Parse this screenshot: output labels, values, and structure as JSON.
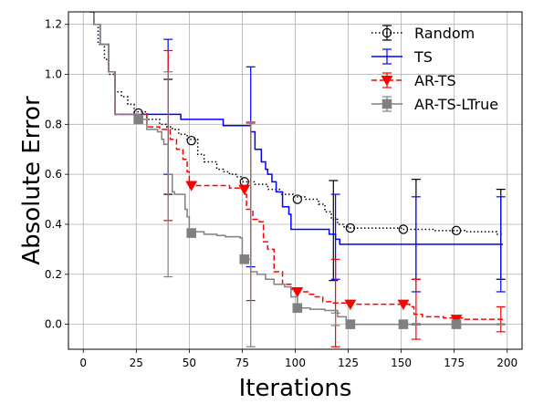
{
  "chart_data": {
    "type": "line",
    "title": "",
    "xlabel": "Iterations",
    "ylabel": "Absolute Error",
    "xlim": [
      -7,
      207
    ],
    "ylim": [
      -0.1,
      1.25
    ],
    "xticks": [
      0,
      25,
      50,
      75,
      100,
      125,
      150,
      175,
      200
    ],
    "yticks": [
      0.0,
      0.2,
      0.4,
      0.6,
      0.8,
      1.0,
      1.2
    ],
    "grid": true,
    "legend_position": "top-right",
    "series": [
      {
        "name": "Random",
        "color": "#000000",
        "dash": "dotted",
        "marker": "circle-open",
        "steps": [
          [
            0,
            1.32
          ],
          [
            3,
            1.25
          ],
          [
            5,
            1.2
          ],
          [
            7,
            1.12
          ],
          [
            10,
            1.06
          ],
          [
            12,
            1.0
          ],
          [
            15,
            0.93
          ],
          [
            18,
            0.91
          ],
          [
            21,
            0.88
          ],
          [
            24,
            0.85
          ],
          [
            30,
            0.82
          ],
          [
            36,
            0.8
          ],
          [
            39,
            0.79
          ],
          [
            42,
            0.78
          ],
          [
            45,
            0.76
          ],
          [
            49,
            0.74
          ],
          [
            54,
            0.68
          ],
          [
            57,
            0.65
          ],
          [
            63,
            0.62
          ],
          [
            66,
            0.61
          ],
          [
            69,
            0.6
          ],
          [
            72,
            0.59
          ],
          [
            75,
            0.57
          ],
          [
            81,
            0.56
          ],
          [
            87,
            0.54
          ],
          [
            93,
            0.52
          ],
          [
            99,
            0.51
          ],
          [
            105,
            0.5
          ],
          [
            111,
            0.48
          ],
          [
            114,
            0.45
          ],
          [
            117,
            0.42
          ],
          [
            120,
            0.4
          ],
          [
            123,
            0.39
          ],
          [
            126,
            0.385
          ],
          [
            150,
            0.38
          ],
          [
            165,
            0.375
          ],
          [
            180,
            0.37
          ],
          [
            195,
            0.36
          ],
          [
            198,
            0.36
          ]
        ],
        "markers": [
          [
            26,
            0.845
          ],
          [
            51,
            0.735
          ],
          [
            76,
            0.57
          ],
          [
            101,
            0.5
          ],
          [
            126,
            0.385
          ],
          [
            151,
            0.38
          ],
          [
            176,
            0.375
          ]
        ],
        "errorbars": [
          [
            40,
            0.75,
            0.23
          ],
          [
            118,
            0.375,
            0.2
          ],
          [
            157,
            0.38,
            0.2
          ],
          [
            197,
            0.36,
            0.18
          ]
        ]
      },
      {
        "name": "TS",
        "color": "#0000ff",
        "dash": "solid",
        "marker": "none",
        "steps": [
          [
            0,
            1.32
          ],
          [
            2,
            1.28
          ],
          [
            5,
            1.2
          ],
          [
            8,
            1.12
          ],
          [
            12,
            1.01
          ],
          [
            15,
            0.84
          ],
          [
            45,
            0.84
          ],
          [
            46,
            0.82
          ],
          [
            65,
            0.82
          ],
          [
            66,
            0.795
          ],
          [
            78,
            0.795
          ],
          [
            79,
            0.77
          ],
          [
            81,
            0.7
          ],
          [
            84,
            0.65
          ],
          [
            86,
            0.62
          ],
          [
            87,
            0.6
          ],
          [
            89,
            0.57
          ],
          [
            91,
            0.53
          ],
          [
            94,
            0.47
          ],
          [
            97,
            0.44
          ],
          [
            98,
            0.38
          ],
          [
            115,
            0.38
          ],
          [
            116,
            0.36
          ],
          [
            119,
            0.34
          ],
          [
            121,
            0.32
          ],
          [
            198,
            0.32
          ]
        ],
        "markers": [],
        "errorbars": [
          [
            40,
            0.87,
            0.27
          ],
          [
            79,
            0.63,
            0.4
          ],
          [
            119,
            0.35,
            0.17
          ],
          [
            157,
            0.32,
            0.19
          ],
          [
            197,
            0.32,
            0.19
          ]
        ]
      },
      {
        "name": "AR-TS",
        "color": "#ff0000",
        "dash": "dashed",
        "marker": "triangle-down",
        "steps": [
          [
            0,
            1.32
          ],
          [
            3,
            1.25
          ],
          [
            5,
            1.2
          ],
          [
            8,
            1.12
          ],
          [
            12,
            1.01
          ],
          [
            15,
            0.84
          ],
          [
            28,
            0.84
          ],
          [
            30,
            0.79
          ],
          [
            36,
            0.78
          ],
          [
            41,
            0.74
          ],
          [
            44,
            0.7
          ],
          [
            47,
            0.66
          ],
          [
            49,
            0.61
          ],
          [
            50,
            0.555
          ],
          [
            66,
            0.555
          ],
          [
            69,
            0.545
          ],
          [
            74,
            0.54
          ],
          [
            76,
            0.52
          ],
          [
            77,
            0.46
          ],
          [
            80,
            0.42
          ],
          [
            83,
            0.41
          ],
          [
            85,
            0.33
          ],
          [
            87,
            0.3
          ],
          [
            90,
            0.21
          ],
          [
            94,
            0.16
          ],
          [
            98,
            0.14
          ],
          [
            101,
            0.13
          ],
          [
            106,
            0.12
          ],
          [
            109,
            0.11
          ],
          [
            113,
            0.09
          ],
          [
            118,
            0.085
          ],
          [
            124,
            0.08
          ],
          [
            130,
            0.08
          ],
          [
            150,
            0.08
          ],
          [
            154,
            0.07
          ],
          [
            156,
            0.04
          ],
          [
            160,
            0.03
          ],
          [
            170,
            0.025
          ],
          [
            180,
            0.02
          ],
          [
            198,
            0.02
          ]
        ],
        "markers": [
          [
            51,
            0.555
          ],
          [
            76,
            0.54
          ],
          [
            101,
            0.13
          ],
          [
            126,
            0.08
          ],
          [
            151,
            0.08
          ],
          [
            176,
            0.02
          ]
        ],
        "errorbars": [
          [
            40,
            0.755,
            0.34
          ],
          [
            79,
            0.45,
            0.355
          ],
          [
            119,
            0.085,
            0.175
          ],
          [
            157,
            0.06,
            0.12
          ],
          [
            197,
            0.02,
            0.05
          ]
        ]
      },
      {
        "name": "AR-TS-LTrue",
        "color": "#808080",
        "dash": "solid",
        "marker": "square",
        "steps": [
          [
            0,
            1.32
          ],
          [
            3,
            1.25
          ],
          [
            5,
            1.2
          ],
          [
            8,
            1.12
          ],
          [
            12,
            1.01
          ],
          [
            15,
            0.84
          ],
          [
            24,
            0.84
          ],
          [
            27,
            0.82
          ],
          [
            30,
            0.78
          ],
          [
            35,
            0.77
          ],
          [
            37,
            0.74
          ],
          [
            38,
            0.72
          ],
          [
            40,
            0.6
          ],
          [
            42,
            0.53
          ],
          [
            43,
            0.52
          ],
          [
            47,
            0.52
          ],
          [
            48,
            0.46
          ],
          [
            49,
            0.43
          ],
          [
            50,
            0.38
          ],
          [
            51,
            0.37
          ],
          [
            57,
            0.36
          ],
          [
            63,
            0.355
          ],
          [
            67,
            0.35
          ],
          [
            74,
            0.345
          ],
          [
            75,
            0.26
          ],
          [
            78,
            0.26
          ],
          [
            79,
            0.21
          ],
          [
            82,
            0.2
          ],
          [
            86,
            0.18
          ],
          [
            90,
            0.16
          ],
          [
            95,
            0.15
          ],
          [
            98,
            0.11
          ],
          [
            101,
            0.065
          ],
          [
            107,
            0.06
          ],
          [
            114,
            0.055
          ],
          [
            120,
            0.03
          ],
          [
            124,
            0.005
          ],
          [
            127,
            0.0
          ],
          [
            198,
            0.0
          ]
        ],
        "markers": [
          [
            26,
            0.82
          ],
          [
            51,
            0.365
          ],
          [
            76,
            0.26
          ],
          [
            101,
            0.065
          ],
          [
            126,
            0.0
          ],
          [
            151,
            0.0
          ],
          [
            176,
            0.0
          ]
        ],
        "errorbars": [
          [
            40,
            0.6,
            0.41
          ],
          [
            79,
            0.36,
            0.45
          ],
          [
            119,
            0.02,
            0.025
          ],
          [
            157,
            0.0,
            0.003
          ],
          [
            197,
            0.0,
            0.002
          ]
        ]
      }
    ]
  }
}
